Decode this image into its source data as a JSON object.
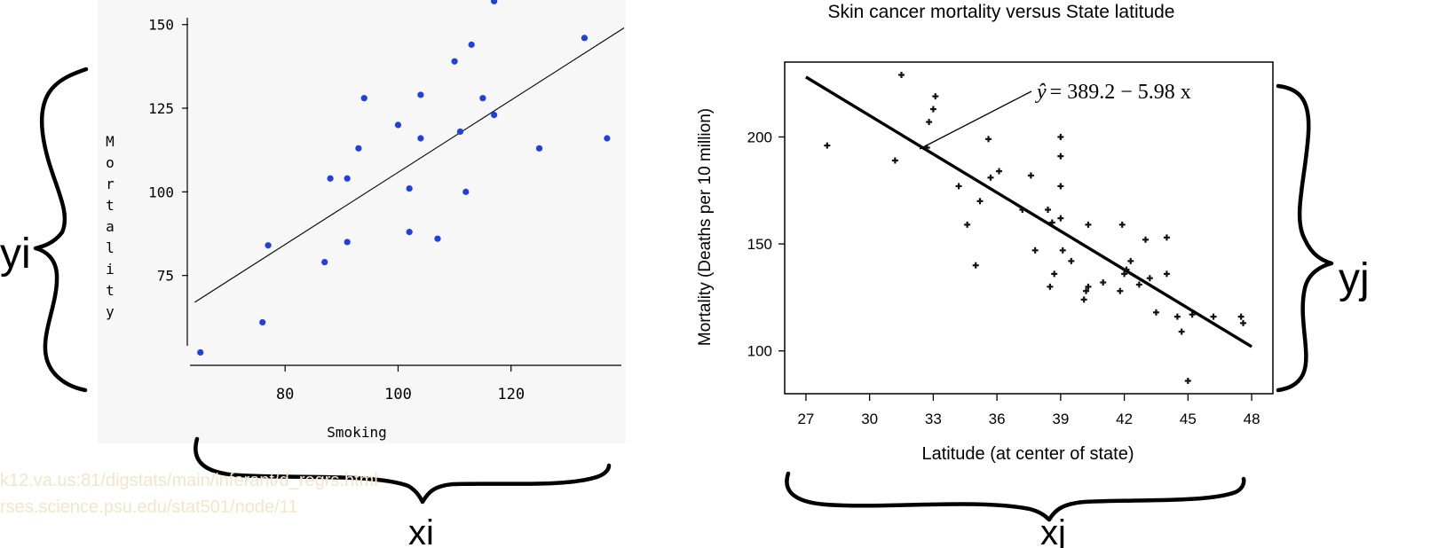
{
  "annotations": {
    "left_y": "yi",
    "left_x": "xi",
    "right_y": "yj",
    "right_x": "xj"
  },
  "sources": [
    "k12.va.us:81/digstats/main/inferant/d_regrs.html",
    "rses.science.psu.edu/stat501/node/11"
  ],
  "colors": {
    "left_points": "#1f3fe0",
    "right_points": "#111111",
    "line": "#000000",
    "panel_bg": "#f7f7f7"
  },
  "chart_data": [
    {
      "type": "scatter",
      "title": "",
      "xlabel": "Smoking",
      "ylabel": "Mortality",
      "xlim": [
        63,
        140
      ],
      "ylim": [
        50,
        160
      ],
      "xticks": [
        80,
        100,
        120
      ],
      "yticks": [
        75,
        100,
        125,
        150
      ],
      "grid": false,
      "points": [
        [
          65,
          52
        ],
        [
          76,
          61
        ],
        [
          77,
          84
        ],
        [
          87,
          79
        ],
        [
          88,
          104
        ],
        [
          91,
          104
        ],
        [
          91,
          85
        ],
        [
          93,
          113
        ],
        [
          94,
          128
        ],
        [
          100,
          120
        ],
        [
          102,
          101
        ],
        [
          102,
          88
        ],
        [
          104,
          129
        ],
        [
          104,
          116
        ],
        [
          107,
          86
        ],
        [
          110,
          139
        ],
        [
          111,
          118
        ],
        [
          112,
          100
        ],
        [
          113,
          144
        ],
        [
          115,
          128
        ],
        [
          117,
          123
        ],
        [
          117,
          157
        ],
        [
          125,
          113
        ],
        [
          133,
          146
        ],
        [
          137,
          116
        ]
      ],
      "trend_line": [
        [
          64,
          67
        ],
        [
          140,
          149
        ]
      ]
    },
    {
      "type": "scatter",
      "title": "Skin cancer mortality versus State latitude",
      "xlabel": "Latitude (at center of state)",
      "ylabel": "Mortality (Deaths per 10 million)",
      "xlim": [
        26,
        49
      ],
      "ylim": [
        80,
        235
      ],
      "xticks": [
        27,
        30,
        33,
        36,
        39,
        42,
        45,
        48
      ],
      "yticks": [
        100,
        150,
        200
      ],
      "grid": false,
      "equation": "ŷ = 389.2 − 5.98 x",
      "equation_parts": {
        "yhat": "ŷ",
        "rest": "= 389.2 − 5.98 x"
      },
      "points": [
        [
          28,
          196
        ],
        [
          31.2,
          189
        ],
        [
          31.5,
          229
        ],
        [
          32.8,
          207
        ],
        [
          33,
          213
        ],
        [
          33.1,
          219
        ],
        [
          32.7,
          195
        ],
        [
          34.2,
          177
        ],
        [
          34.6,
          159
        ],
        [
          35,
          140
        ],
        [
          35.2,
          170
        ],
        [
          35.6,
          199
        ],
        [
          35.7,
          181
        ],
        [
          36.1,
          184
        ],
        [
          37.6,
          182
        ],
        [
          37.2,
          166
        ],
        [
          37.8,
          147
        ],
        [
          38.4,
          166
        ],
        [
          38.6,
          160
        ],
        [
          38.7,
          136
        ],
        [
          39,
          200
        ],
        [
          39,
          191
        ],
        [
          39,
          177
        ],
        [
          39,
          162
        ],
        [
          39.1,
          147
        ],
        [
          38.5,
          130
        ],
        [
          39.5,
          142
        ],
        [
          40.1,
          124
        ],
        [
          40.2,
          128
        ],
        [
          40.3,
          130
        ],
        [
          40.3,
          159
        ],
        [
          41,
          132
        ],
        [
          41.8,
          128
        ],
        [
          41.9,
          159
        ],
        [
          42,
          136
        ],
        [
          42.1,
          138
        ],
        [
          42.3,
          142
        ],
        [
          42.7,
          131
        ],
        [
          43,
          152
        ],
        [
          43.2,
          134
        ],
        [
          43.5,
          118
        ],
        [
          44,
          153
        ],
        [
          44,
          136
        ],
        [
          44.7,
          109
        ],
        [
          44.5,
          116
        ],
        [
          45,
          86
        ],
        [
          45.2,
          117
        ],
        [
          46.2,
          116
        ],
        [
          47.6,
          113
        ],
        [
          47.5,
          116
        ]
      ],
      "trend_line": [
        [
          27,
          228
        ],
        [
          48,
          102
        ]
      ]
    }
  ]
}
